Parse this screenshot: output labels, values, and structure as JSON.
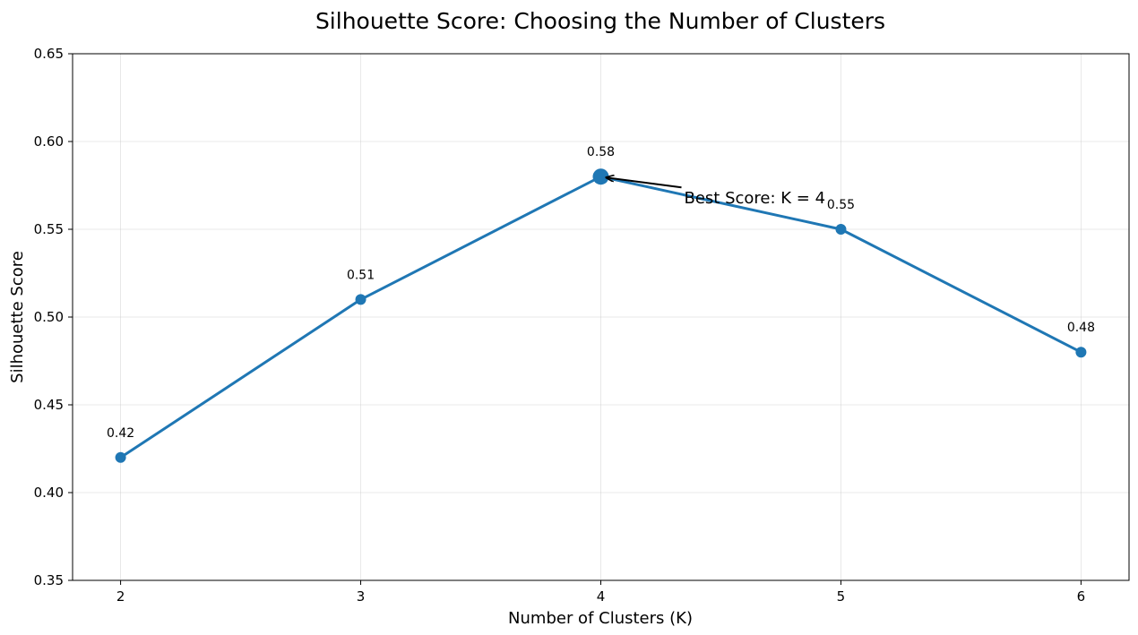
{
  "chart_data": {
    "type": "line",
    "title": "Silhouette Score: Choosing the Number of Clusters",
    "xlabel": "Number of Clusters (K)",
    "ylabel": "Silhouette Score",
    "x": [
      2,
      3,
      4,
      5,
      6
    ],
    "series": [
      {
        "values": [
          0.42,
          0.51,
          0.58,
          0.55,
          0.48
        ],
        "color": "#1f77b4"
      }
    ],
    "data_labels": [
      "0.42",
      "0.51",
      "0.58",
      "0.55",
      "0.48"
    ],
    "xlim": [
      1.8,
      6.2
    ],
    "ylim": [
      0.35,
      0.65
    ],
    "xticks": [
      "2",
      "3",
      "4",
      "5",
      "6"
    ],
    "yticks": [
      "0.35",
      "0.40",
      "0.45",
      "0.50",
      "0.55",
      "0.60",
      "0.65"
    ],
    "grid": true,
    "highlight": {
      "x": 4,
      "y": 0.58
    },
    "annotation": {
      "text": "Best Score: K = 4",
      "x": 4,
      "y": 0.58
    }
  }
}
